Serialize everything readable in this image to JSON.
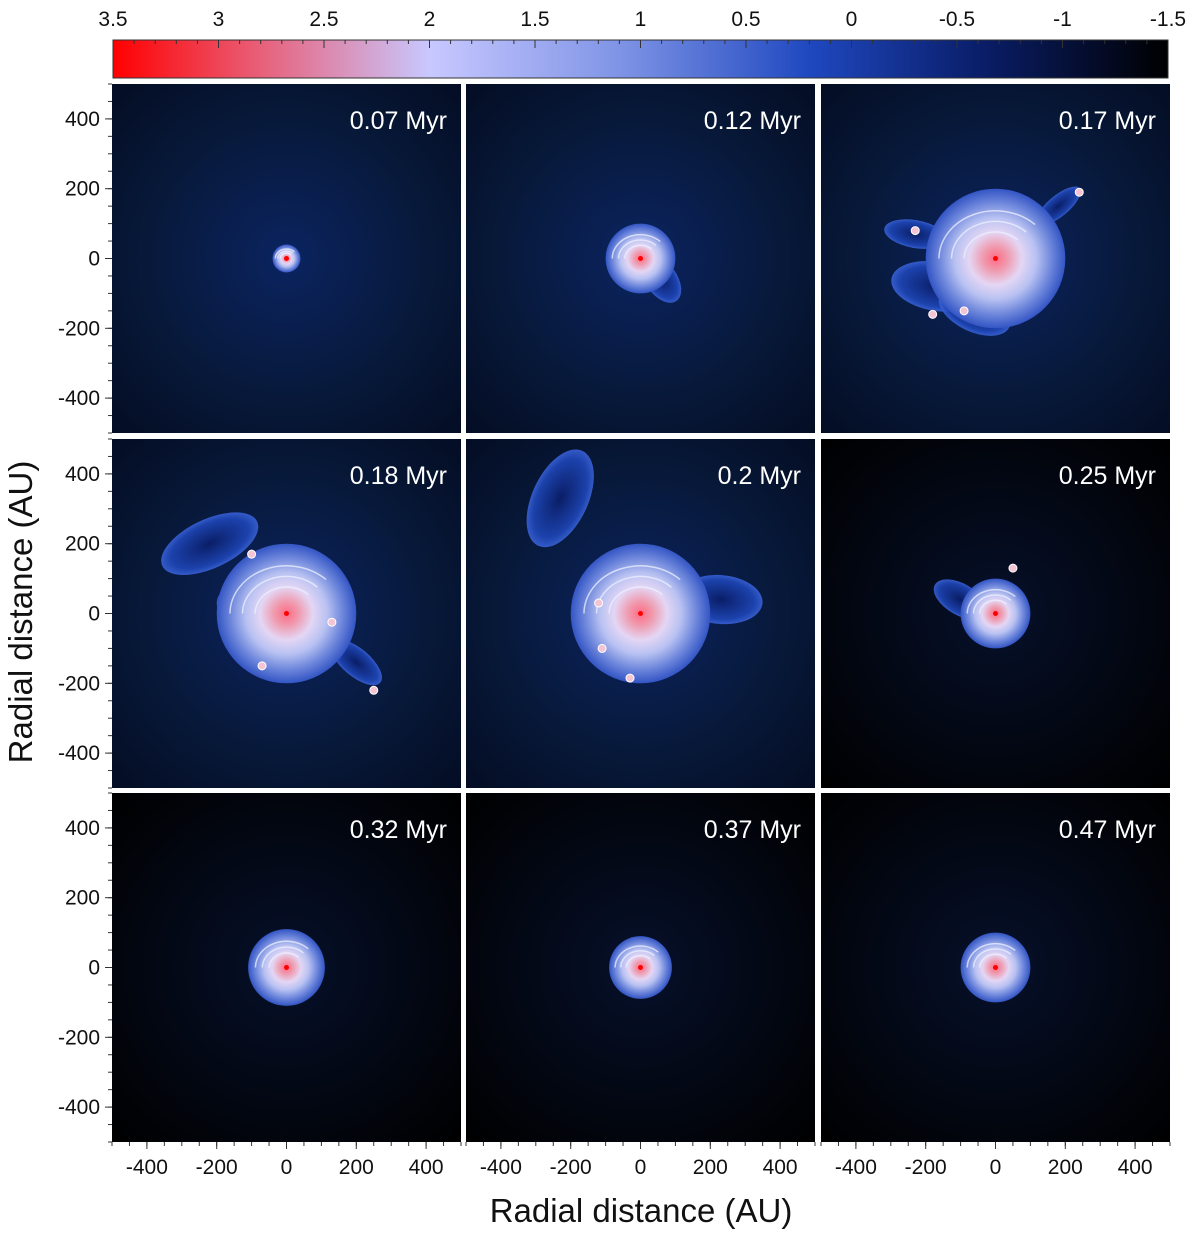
{
  "colorbar": {
    "tick_labels": [
      "3.5",
      "3",
      "2.5",
      "2",
      "1.5",
      "1",
      "0.5",
      "0",
      "-0.5",
      "-1",
      "-1.5"
    ],
    "range": [
      3.5,
      -1.5
    ],
    "colors": [
      "#ff0000",
      "#c8c8ff",
      "#1030a0",
      "#000000"
    ]
  },
  "axes": {
    "xlabel": "Radial distance (AU)",
    "ylabel": "Radial distance (AU)",
    "x_tick_labels": [
      "-400",
      "-200",
      "0",
      "200",
      "400"
    ],
    "y_tick_labels": [
      "400",
      "200",
      "0",
      "-200",
      "-400"
    ],
    "range": [
      -500,
      500
    ]
  },
  "panels": [
    {
      "time": "0.07 Myr",
      "disk_radius_au": 40
    },
    {
      "time": "0.12 Myr",
      "disk_radius_au": 100
    },
    {
      "time": "0.17 Myr",
      "disk_radius_au": 200
    },
    {
      "time": "0.18 Myr",
      "disk_radius_au": 200
    },
    {
      "time": "0.2 Myr",
      "disk_radius_au": 200
    },
    {
      "time": "0.25 Myr",
      "disk_radius_au": 100
    },
    {
      "time": "0.32 Myr",
      "disk_radius_au": 110
    },
    {
      "time": "0.37 Myr",
      "disk_radius_au": 90
    },
    {
      "time": "0.47 Myr",
      "disk_radius_au": 100
    }
  ]
}
